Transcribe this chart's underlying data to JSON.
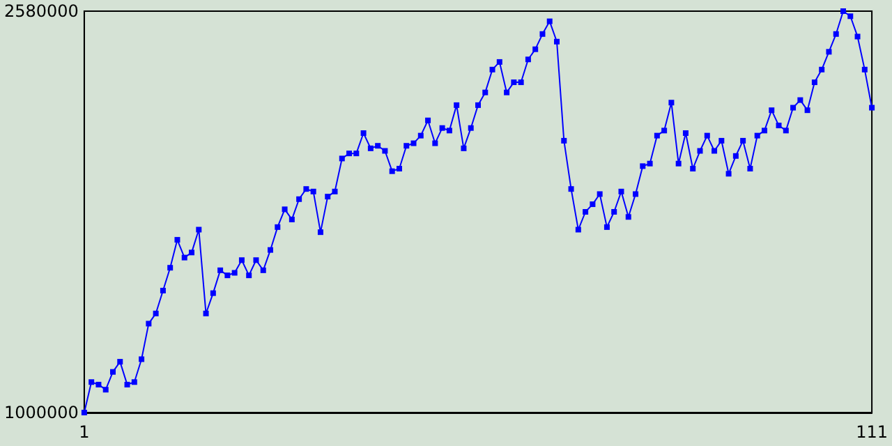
{
  "chart_data": {
    "type": "line",
    "x": [
      1,
      2,
      3,
      4,
      5,
      6,
      7,
      8,
      9,
      10,
      11,
      12,
      13,
      14,
      15,
      16,
      17,
      18,
      19,
      20,
      21,
      22,
      23,
      24,
      25,
      26,
      27,
      28,
      29,
      30,
      31,
      32,
      33,
      34,
      35,
      36,
      37,
      38,
      39,
      40,
      41,
      42,
      43,
      44,
      45,
      46,
      47,
      48,
      49,
      50,
      51,
      52,
      53,
      54,
      55,
      56,
      57,
      58,
      59,
      60,
      61,
      62,
      63,
      64,
      65,
      66,
      67,
      68,
      69,
      70,
      71,
      72,
      73,
      74,
      75,
      76,
      77,
      78,
      79,
      80,
      81,
      82,
      83,
      84,
      85,
      86,
      87,
      88,
      89,
      90,
      91,
      92,
      93,
      94,
      95,
      96,
      97,
      98,
      99,
      100,
      101,
      102,
      103,
      104,
      105,
      106,
      107,
      108,
      109,
      110,
      111
    ],
    "series": [
      {
        "color": "#0000ff",
        "values": [
          1000000,
          1120000,
          1110000,
          1090000,
          1160000,
          1200000,
          1110000,
          1120000,
          1210000,
          1350000,
          1390000,
          1480000,
          1570000,
          1680000,
          1610000,
          1630000,
          1720000,
          1390000,
          1470000,
          1560000,
          1540000,
          1550000,
          1600000,
          1540000,
          1600000,
          1560000,
          1640000,
          1730000,
          1800000,
          1760000,
          1840000,
          1880000,
          1870000,
          1710000,
          1850000,
          1870000,
          2000000,
          2020000,
          2020000,
          2100000,
          2040000,
          2050000,
          2030000,
          1950000,
          1960000,
          2050000,
          2060000,
          2090000,
          2150000,
          2060000,
          2120000,
          2110000,
          2210000,
          2040000,
          2120000,
          2210000,
          2260000,
          2350000,
          2380000,
          2260000,
          2300000,
          2300000,
          2390000,
          2430000,
          2490000,
          2540000,
          2460000,
          2070000,
          1880000,
          1720000,
          1790000,
          1820000,
          1860000,
          1730000,
          1790000,
          1870000,
          1770000,
          1860000,
          1970000,
          1980000,
          2090000,
          2110000,
          2220000,
          1980000,
          2100000,
          1960000,
          2030000,
          2090000,
          2030000,
          2070000,
          1940000,
          2010000,
          2070000,
          1960000,
          2090000,
          2110000,
          2190000,
          2130000,
          2110000,
          2200000,
          2230000,
          2190000,
          2300000,
          2350000,
          2420000,
          2490000,
          2580000,
          2560000,
          2480000,
          2350000,
          2200000
        ]
      }
    ],
    "xlim": [
      1,
      111
    ],
    "xticks": [
      1,
      111
    ],
    "ylim": [
      1000000,
      2580000
    ],
    "yticks": [
      1000000,
      2580000
    ],
    "grid": false,
    "marker": "square",
    "line_style": "solid"
  }
}
